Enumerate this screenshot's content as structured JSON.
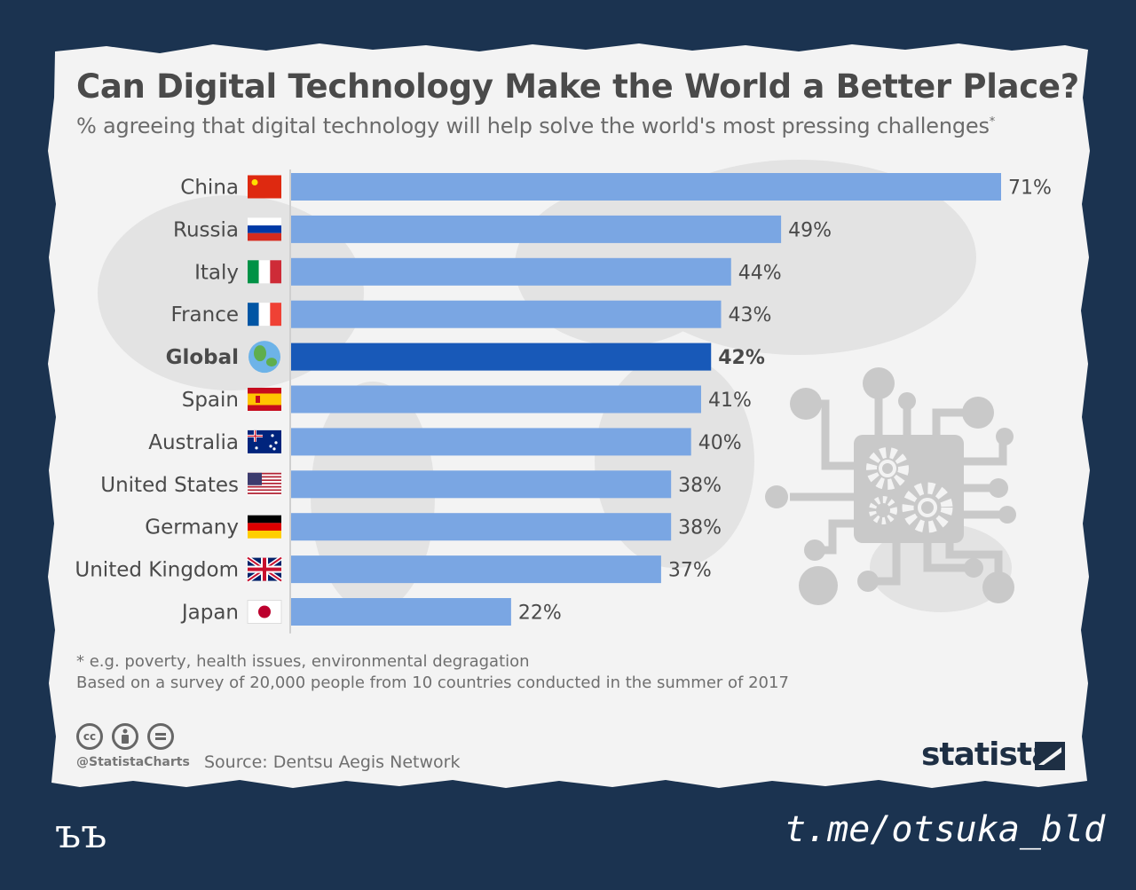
{
  "header": {
    "title": "Can Digital Technology Make the World a Better Place?",
    "subtitle": "% agreeing that digital technology will help solve the world's most pressing challenges",
    "subtitle_mark": "*"
  },
  "chart_data": {
    "type": "bar",
    "orientation": "horizontal",
    "categories": [
      "China",
      "Russia",
      "Italy",
      "France",
      "Global",
      "Spain",
      "Australia",
      "United States",
      "Germany",
      "United Kingdom",
      "Japan"
    ],
    "values": [
      71,
      49,
      44,
      43,
      42,
      41,
      40,
      38,
      38,
      37,
      22
    ],
    "value_labels": [
      "71%",
      "49%",
      "44%",
      "43%",
      "42%",
      "41%",
      "40%",
      "38%",
      "38%",
      "37%",
      "22%"
    ],
    "highlight_category": "Global",
    "unit": "%",
    "xlim": [
      0,
      71
    ],
    "grid": false,
    "legend": "none"
  },
  "flag_icons": [
    "china-flag-icon",
    "russia-flag-icon",
    "italy-flag-icon",
    "france-flag-icon",
    "globe-icon",
    "spain-flag-icon",
    "australia-flag-icon",
    "usa-flag-icon",
    "germany-flag-icon",
    "uk-flag-icon",
    "japan-flag-icon"
  ],
  "notes": {
    "footnote": "* e.g. poverty, health issues, environmental degragation",
    "survey": "Based on a survey of 20,000 people from 10 countries conducted in the summer of 2017"
  },
  "footer": {
    "cc_label": "cc",
    "handle": "@StatistaCharts",
    "source": "Source: Dentsu Aegis Network",
    "brand": "statista"
  },
  "watermark": {
    "left": "ъъ",
    "right": "t.me/otsuka_bld"
  },
  "colors": {
    "bar": "#7aa6e3",
    "bar_highlight": "#1859b8",
    "background": "#1b3350",
    "paper": "#f3f3f3",
    "text": "#4a4a4a"
  }
}
